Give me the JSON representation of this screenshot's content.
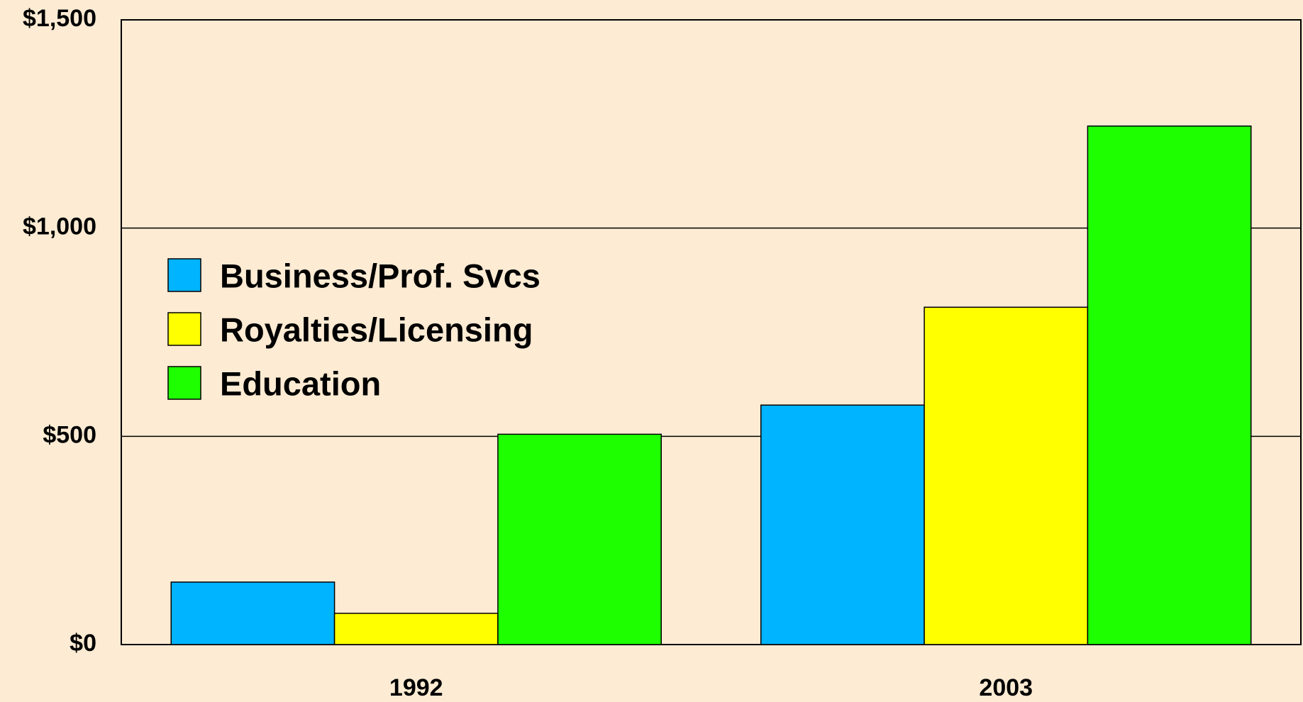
{
  "chart_data": {
    "type": "bar",
    "categories": [
      "1992",
      "2003"
    ],
    "series": [
      {
        "name": "Business/Prof. Svcs",
        "color": "#00b4ff",
        "values": [
          150,
          575
        ]
      },
      {
        "name": "Royalties/Licensing",
        "color": "#ffff00",
        "values": [
          75,
          810
        ]
      },
      {
        "name": "Education",
        "color": "#1eff00",
        "values": [
          505,
          1245
        ]
      }
    ],
    "ylim": [
      0,
      1500
    ],
    "yticks": [
      {
        "value": 0,
        "label": "$0"
      },
      {
        "value": 500,
        "label": "$500"
      },
      {
        "value": 1000,
        "label": "$1,000"
      },
      {
        "value": 1500,
        "label": "$1,500"
      }
    ],
    "grid": true,
    "legend": "upper left"
  }
}
